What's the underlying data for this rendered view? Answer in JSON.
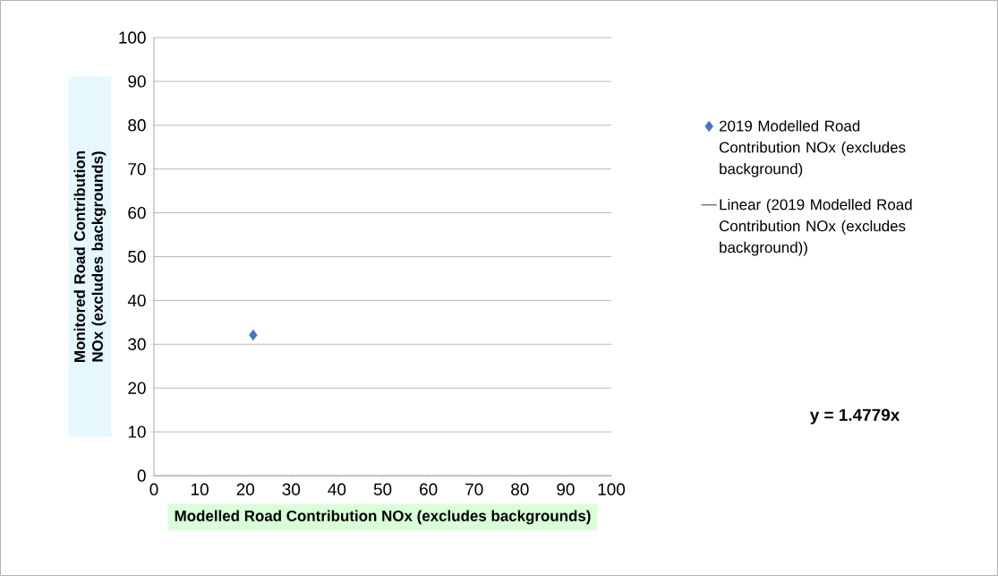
{
  "chart_data": {
    "type": "scatter",
    "xlabel": "Modelled Road Contribution NOx (excludes backgrounds)",
    "ylabel": "Monitored Road Contribution NOx (excludes backgrounds)",
    "xlim": [
      0,
      100
    ],
    "xticks": [
      0,
      10,
      20,
      30,
      40,
      50,
      60,
      70,
      80,
      90,
      100
    ],
    "ylim": [
      0,
      100
    ],
    "yticks": [
      0,
      10,
      20,
      30,
      40,
      50,
      60,
      70,
      80,
      90,
      100
    ],
    "grid": "y",
    "legend": "right",
    "series": [
      {
        "name": "2019 Modelled Road Contribution NOx (excludes background)",
        "color": "#4472c4",
        "marker": "diamond",
        "x": [
          21.7
        ],
        "values": [
          32.1
        ]
      },
      {
        "name": "Linear (2019 Modelled Road Contribution NOx (excludes background))",
        "type": "line",
        "color": "#000000",
        "marker": "none",
        "values": [
          null
        ]
      }
    ],
    "annotations": [
      "y = 1.4779x"
    ]
  }
}
